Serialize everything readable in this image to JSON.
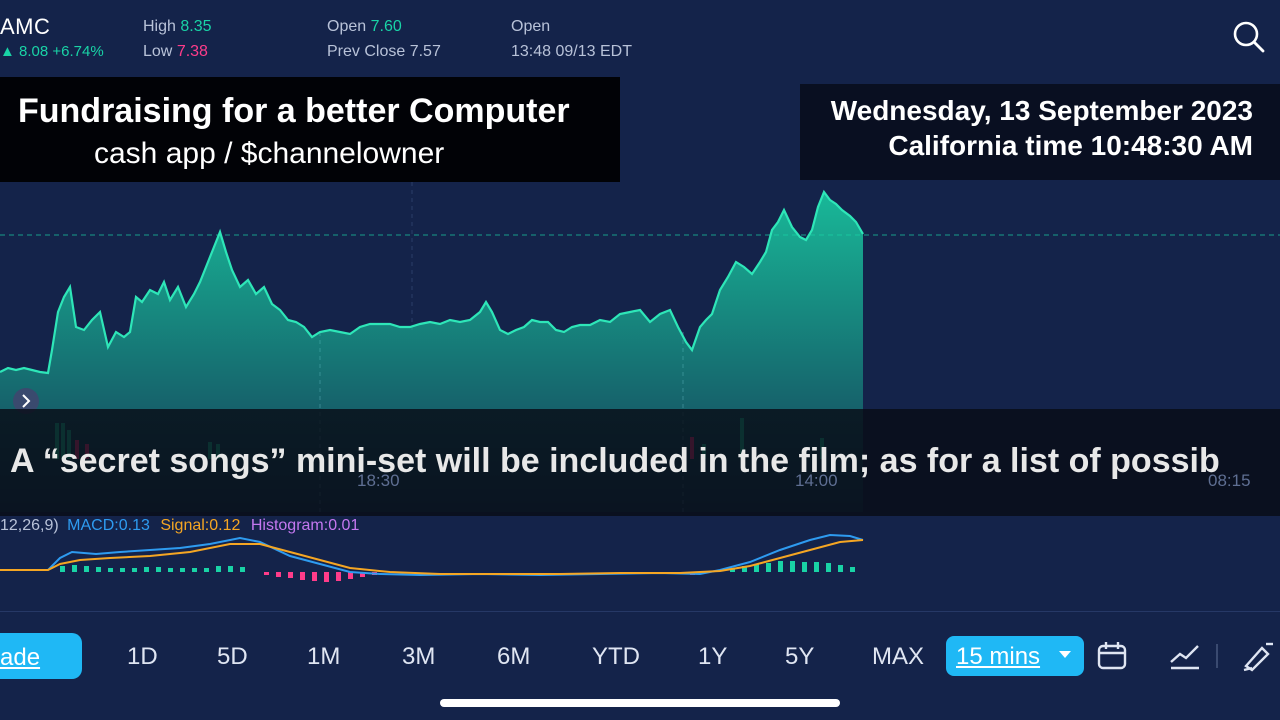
{
  "quote": {
    "symbol": "AMC",
    "price_change": "8.08 +6.74%",
    "high_label": "High",
    "high_value": "8.35",
    "low_label": "Low",
    "low_value": "7.38",
    "open_label": "Open",
    "open_value": "7.60",
    "prev_close_label": "Prev Close",
    "prev_close_value": "7.57",
    "market_status": "Open",
    "timestamp": "13:48 09/13 EDT"
  },
  "overlay": {
    "title": "Fundraising for a better Computer",
    "subtitle": "cash app /  $channelowner",
    "date": "Wednesday, 13 September 2023",
    "time": "California time 10:48:30 AM"
  },
  "ribbon": {
    "text": "A “secret songs” mini-set will be included in the film; as for a list of possib"
  },
  "time_axis": [
    "18:30",
    "14:00",
    "08:15"
  ],
  "macd": {
    "params": "12,26,9)",
    "macd_label": "MACD:0.13",
    "signal_label": "Signal:0.12",
    "histogram_label": "Histogram:0.01"
  },
  "toolbar": {
    "trade_label": "ade",
    "ranges": [
      "1D",
      "5D",
      "1M",
      "3M",
      "6M",
      "YTD",
      "1Y",
      "5Y",
      "MAX"
    ],
    "interval": "15 mins"
  },
  "colors": {
    "area": "#19d3a6",
    "macd": "#2e9bf0",
    "signal": "#f5a623",
    "hist_pos": "#19d3a6",
    "hist_neg": "#ff3c8a",
    "histogram_text": "#c478f0"
  }
}
